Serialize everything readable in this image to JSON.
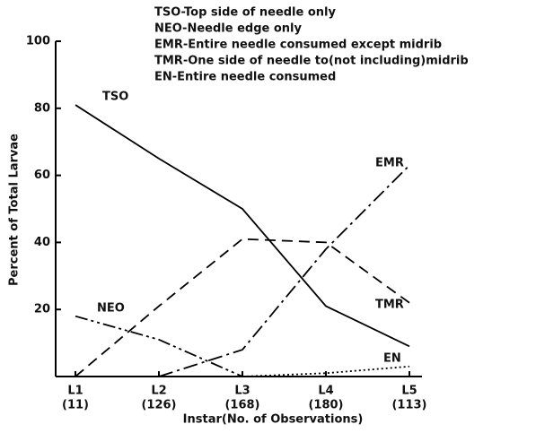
{
  "chart_data": {
    "type": "line",
    "legend_notes": [
      "TSO-Top side of needle only",
      "NEO-Needle edge only",
      "EMR-Entire needle consumed except midrib",
      "TMR-One side of needle to(not including)midrib",
      "EN-Entire needle consumed"
    ],
    "y_label": "Percent of Total Larvae",
    "x_label": "Instar(No. of Observations)",
    "categories": [
      "L1",
      "L2",
      "L3",
      "L4",
      "L5"
    ],
    "category_sublabels": [
      "(11)",
      "(126)",
      "(168)",
      "(180)",
      "(113)"
    ],
    "ylim": [
      0,
      100
    ],
    "yticks": [
      20,
      40,
      60,
      80,
      100
    ],
    "series": [
      {
        "name": "TSO",
        "color": "#000000",
        "dash": "none",
        "values": [
          81,
          65,
          50,
          21,
          9
        ]
      },
      {
        "name": "TMR",
        "color": "#000000",
        "dash": "12,7",
        "values": [
          0,
          21,
          41,
          40,
          22
        ]
      },
      {
        "name": "EMR",
        "color": "#000000",
        "dash": "16,5,3,5",
        "values": [
          null,
          0,
          8,
          38,
          63
        ]
      },
      {
        "name": "NEO",
        "color": "#000000",
        "dash": "14,4,3,4,3,4",
        "values": [
          18,
          11,
          0,
          null,
          null
        ]
      },
      {
        "name": "EN",
        "color": "#000000",
        "dash": "2,3",
        "values": [
          null,
          null,
          0,
          1,
          3
        ]
      }
    ]
  }
}
